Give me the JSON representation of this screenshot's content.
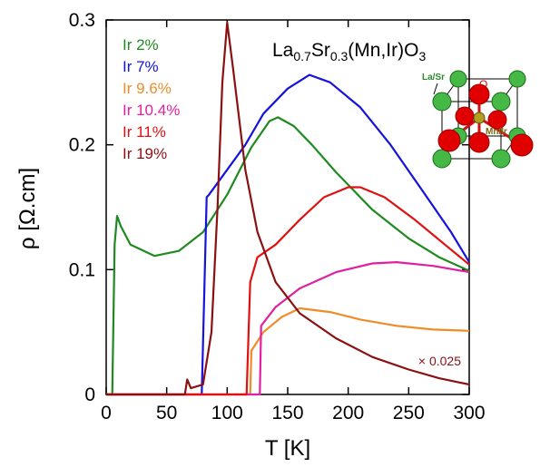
{
  "chart_data": {
    "type": "line",
    "xlabel": "T [K]",
    "ylabel": "ρ [Ω.cm]",
    "formula": [
      "La",
      "0.7",
      "Sr",
      "0.3",
      "(Mn,Ir)O",
      "3"
    ],
    "annotation": "× 0.025",
    "inset_labels": [
      "La/Sr",
      "O",
      "Mn/Ir"
    ],
    "xlim": [
      0,
      300
    ],
    "ylim": [
      0,
      0.3
    ],
    "xticks": [
      0,
      50,
      100,
      150,
      200,
      250,
      300
    ],
    "yticks": [
      0,
      0.1,
      0.2,
      0.3
    ],
    "series": [
      {
        "name": "Ir 2%",
        "color": "#1f8a1f",
        "x": [
          0,
          5,
          7,
          9,
          12,
          20,
          40,
          60,
          80,
          100,
          120,
          135,
          142,
          155,
          170,
          190,
          220,
          250,
          275,
          300
        ],
        "values": [
          0,
          0,
          0.12,
          0.143,
          0.135,
          0.12,
          0.111,
          0.115,
          0.13,
          0.16,
          0.198,
          0.219,
          0.222,
          0.215,
          0.2,
          0.178,
          0.148,
          0.125,
          0.11,
          0.099
        ]
      },
      {
        "name": "Ir 7%",
        "color": "#1414dc",
        "x": [
          0,
          79,
          83,
          85,
          100,
          115,
          130,
          150,
          168,
          185,
          210,
          235,
          260,
          285,
          300
        ],
        "values": [
          0,
          0,
          0.158,
          0.16,
          0.18,
          0.2,
          0.225,
          0.245,
          0.256,
          0.25,
          0.23,
          0.2,
          0.165,
          0.13,
          0.106
        ]
      },
      {
        "name": "Ir 9.6%",
        "color": "#f08c28",
        "x": [
          0,
          119,
          120,
          130,
          145,
          160,
          185,
          210,
          240,
          270,
          300
        ],
        "values": [
          0,
          0,
          0.035,
          0.05,
          0.062,
          0.069,
          0.066,
          0.06,
          0.055,
          0.052,
          0.051
        ]
      },
      {
        "name": "Ir 10.4%",
        "color": "#e020a0",
        "x": [
          0,
          127,
          128,
          140,
          160,
          190,
          220,
          240,
          270,
          300
        ],
        "values": [
          0,
          0,
          0.055,
          0.07,
          0.085,
          0.098,
          0.105,
          0.106,
          0.103,
          0.098
        ]
      },
      {
        "name": "Ir 11%",
        "color": "#e01010",
        "x": [
          0,
          116,
          119,
          125,
          140,
          160,
          180,
          200,
          210,
          230,
          255,
          280,
          300
        ],
        "values": [
          0,
          0,
          0.09,
          0.11,
          0.12,
          0.14,
          0.158,
          0.166,
          0.166,
          0.158,
          0.14,
          0.12,
          0.104
        ]
      },
      {
        "name": "Ir 19%",
        "color": "#8b1010",
        "x": [
          0,
          65,
          67,
          70,
          80,
          87,
          92,
          96,
          100,
          105,
          115,
          125,
          140,
          160,
          190,
          220,
          250,
          275,
          300
        ],
        "values": [
          0,
          0,
          0.012,
          0.005,
          0.008,
          0.05,
          0.15,
          0.25,
          0.298,
          0.26,
          0.18,
          0.13,
          0.09,
          0.065,
          0.045,
          0.03,
          0.02,
          0.013,
          0.008
        ]
      }
    ]
  }
}
